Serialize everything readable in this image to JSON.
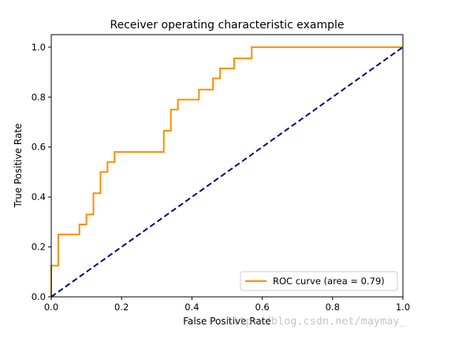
{
  "chart_data": {
    "type": "line",
    "title": "Receiver operating characteristic example",
    "xlabel": "False Positive Rate",
    "ylabel": "True Positive Rate",
    "xlim": [
      0.0,
      1.0
    ],
    "ylim": [
      0.0,
      1.05
    ],
    "xticks": [
      "0.0",
      "0.2",
      "0.4",
      "0.6",
      "0.8",
      "1.0"
    ],
    "yticks": [
      "0.0",
      "0.2",
      "0.4",
      "0.6",
      "0.8",
      "1.0"
    ],
    "grid": false,
    "legend_position": "lower-right",
    "series": [
      {
        "name": "ROC curve (area = 0.79)",
        "color": "#ff8c00",
        "style": "solid",
        "x": [
          0,
          0,
          0.02,
          0.02,
          0.08,
          0.08,
          0.1,
          0.1,
          0.12,
          0.12,
          0.14,
          0.14,
          0.16,
          0.16,
          0.18,
          0.18,
          0.32,
          0.32,
          0.34,
          0.34,
          0.36,
          0.36,
          0.42,
          0.42,
          0.46,
          0.46,
          0.48,
          0.48,
          0.52,
          0.52,
          0.57,
          0.57,
          1.0
        ],
        "y": [
          0,
          0.125,
          0.125,
          0.25,
          0.25,
          0.29,
          0.29,
          0.33,
          0.33,
          0.415,
          0.415,
          0.5,
          0.5,
          0.54,
          0.54,
          0.58,
          0.58,
          0.665,
          0.665,
          0.75,
          0.75,
          0.79,
          0.79,
          0.83,
          0.83,
          0.875,
          0.875,
          0.915,
          0.915,
          0.955,
          0.955,
          1.0,
          1.0
        ]
      },
      {
        "name": "",
        "color": "#000080",
        "style": "dashed",
        "x": [
          0,
          1
        ],
        "y": [
          0,
          1
        ]
      }
    ]
  },
  "watermark": "http://blog.csdn.net/maymay_"
}
